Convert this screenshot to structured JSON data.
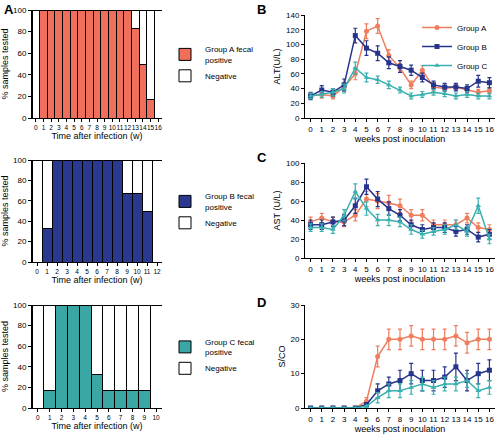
{
  "chart_data": [
    {
      "type": "bar",
      "title": "A",
      "stacked": true,
      "grid": false,
      "legend": "right",
      "x_label": "Time after infection (w)",
      "y_label": "% samples tested",
      "categories": [
        "0",
        "1",
        "2",
        "3",
        "4",
        "5",
        "6",
        "7",
        "8",
        "9",
        "10",
        "11",
        "12",
        "13",
        "14",
        "15",
        "16"
      ],
      "ylim": [
        0,
        100
      ],
      "yticks": [
        0,
        20,
        40,
        60,
        80,
        100
      ],
      "series": [
        {
          "name": "Group A fecal positive",
          "color": "#ef6f5c",
          "values": [
            0,
            100,
            100,
            100,
            100,
            100,
            100,
            100,
            100,
            100,
            100,
            100,
            100,
            83,
            50,
            17,
            0
          ]
        },
        {
          "name": "Negative",
          "color": "#ffffff",
          "values": [
            100,
            0,
            0,
            0,
            0,
            0,
            0,
            0,
            0,
            0,
            0,
            0,
            0,
            17,
            50,
            83,
            100
          ]
        }
      ]
    },
    {
      "type": "bar",
      "stacked": true,
      "grid": false,
      "legend": "right",
      "x_label": "Time after infection (w)",
      "y_label": "% samples tested",
      "categories": [
        "0",
        "1",
        "2",
        "3",
        "4",
        "5",
        "6",
        "7",
        "8",
        "9",
        "10",
        "11",
        "12"
      ],
      "ylim": [
        0,
        100
      ],
      "yticks": [
        0,
        20,
        40,
        60,
        80,
        100
      ],
      "series": [
        {
          "name": "Group B fecal positive",
          "color": "#2a3990",
          "values": [
            0,
            33,
            100,
            100,
            100,
            100,
            100,
            100,
            100,
            67,
            67,
            50,
            0
          ]
        },
        {
          "name": "Negative",
          "color": "#ffffff",
          "values": [
            100,
            67,
            0,
            0,
            0,
            0,
            0,
            0,
            0,
            33,
            33,
            50,
            100
          ]
        }
      ]
    },
    {
      "type": "bar",
      "stacked": true,
      "grid": false,
      "legend": "right",
      "x_label": "Time after infection (w)",
      "y_label": "% samples tested",
      "categories": [
        "0",
        "1",
        "2",
        "3",
        "4",
        "5",
        "6",
        "7",
        "8",
        "9",
        "10"
      ],
      "ylim": [
        0,
        100
      ],
      "yticks": [
        0,
        20,
        40,
        60,
        80,
        100
      ],
      "series": [
        {
          "name": "Group C fecal positive",
          "color": "#3aa7a5",
          "values": [
            0,
            17,
            100,
            100,
            100,
            33,
            17,
            17,
            17,
            17,
            0
          ]
        },
        {
          "name": "Negative",
          "color": "#ffffff",
          "values": [
            100,
            83,
            0,
            0,
            0,
            67,
            83,
            83,
            83,
            83,
            100
          ]
        }
      ]
    },
    {
      "type": "line",
      "title": "B",
      "grid": false,
      "legend": "upper right",
      "x_label": "weeks post inoculation",
      "y_label": "ALT(U/L)",
      "x": [
        0,
        1,
        2,
        3,
        4,
        5,
        6,
        7,
        8,
        9,
        10,
        11,
        12,
        13,
        14,
        15,
        16
      ],
      "xlim": [
        -0.5,
        16.5
      ],
      "xticks": [
        0,
        1,
        2,
        3,
        4,
        5,
        6,
        7,
        8,
        9,
        10,
        11,
        12,
        13,
        14,
        15,
        16
      ],
      "ylim": [
        0,
        140
      ],
      "yticks": [
        0,
        20,
        40,
        60,
        80,
        100,
        120,
        140
      ],
      "series": [
        {
          "name": "Group A",
          "color": "#ee7e5e",
          "marker": "circle",
          "values": [
            30,
            32,
            30,
            42,
            60,
            118,
            125,
            85,
            68,
            45,
            65,
            42,
            40,
            42,
            38,
            35,
            37
          ],
          "errors": [
            4,
            5,
            4,
            6,
            8,
            10,
            10,
            8,
            6,
            5,
            6,
            5,
            4,
            4,
            4,
            4,
            4
          ]
        },
        {
          "name": "Group B",
          "color": "#27348b",
          "marker": "square",
          "values": [
            30,
            38,
            35,
            45,
            112,
            95,
            88,
            75,
            70,
            65,
            55,
            45,
            42,
            42,
            40,
            50,
            48
          ],
          "errors": [
            5,
            6,
            5,
            8,
            10,
            10,
            10,
            8,
            8,
            7,
            6,
            5,
            5,
            5,
            5,
            8,
            7
          ]
        },
        {
          "name": "Group C",
          "color": "#3ab0b0",
          "marker": "triangle-up",
          "values": [
            30,
            32,
            35,
            40,
            68,
            55,
            52,
            45,
            38,
            30,
            32,
            35,
            33,
            30,
            32,
            30,
            30
          ],
          "errors": [
            4,
            4,
            5,
            6,
            8,
            6,
            5,
            5,
            4,
            4,
            4,
            4,
            4,
            4,
            4,
            4,
            4
          ]
        }
      ]
    },
    {
      "type": "line",
      "title": "C",
      "grid": false,
      "x_label": "weeks post inoculation",
      "y_label": "AST (U/L)",
      "x": [
        0,
        1,
        2,
        3,
        4,
        5,
        6,
        7,
        8,
        9,
        10,
        11,
        12,
        13,
        14,
        15,
        16
      ],
      "xlim": [
        -0.5,
        16.5
      ],
      "xticks": [
        0,
        1,
        2,
        3,
        4,
        5,
        6,
        7,
        8,
        9,
        10,
        11,
        12,
        13,
        14,
        15,
        16
      ],
      "ylim": [
        0,
        100
      ],
      "yticks": [
        0,
        20,
        40,
        60,
        80,
        100
      ],
      "series": [
        {
          "color": "#ee7e5e",
          "marker": "circle",
          "values": [
            38,
            42,
            38,
            38,
            45,
            62,
            60,
            58,
            55,
            45,
            45,
            35,
            35,
            35,
            42,
            32,
            30
          ],
          "errors": [
            5,
            5,
            5,
            5,
            6,
            8,
            8,
            8,
            7,
            6,
            6,
            5,
            5,
            5,
            5,
            5,
            5
          ]
        },
        {
          "color": "#27348b",
          "marker": "square",
          "values": [
            35,
            35,
            38,
            40,
            55,
            75,
            62,
            52,
            45,
            35,
            30,
            32,
            32,
            28,
            30,
            22,
            25
          ],
          "errors": [
            5,
            5,
            5,
            6,
            8,
            8,
            8,
            7,
            6,
            5,
            5,
            5,
            5,
            5,
            5,
            5,
            5
          ]
        },
        {
          "color": "#3ab0b0",
          "marker": "triangle-up",
          "values": [
            32,
            32,
            30,
            45,
            70,
            52,
            40,
            40,
            38,
            30,
            25,
            28,
            30,
            35,
            28,
            55,
            20
          ],
          "errors": [
            4,
            4,
            4,
            6,
            8,
            7,
            6,
            6,
            5,
            5,
            4,
            4,
            5,
            5,
            5,
            8,
            5
          ]
        }
      ]
    },
    {
      "type": "line",
      "title": "D",
      "grid": false,
      "x_label": "weeks post inoculation",
      "y_label": "S/CO",
      "x": [
        0,
        1,
        2,
        3,
        4,
        5,
        6,
        7,
        8,
        9,
        10,
        11,
        12,
        13,
        14,
        15,
        16
      ],
      "xlim": [
        -0.5,
        16.5
      ],
      "xticks": [
        0,
        1,
        2,
        3,
        4,
        5,
        6,
        7,
        8,
        9,
        10,
        11,
        12,
        13,
        14,
        15,
        16
      ],
      "ylim": [
        0,
        30
      ],
      "yticks": [
        0,
        10,
        20,
        30
      ],
      "series": [
        {
          "color": "#ee7e5e",
          "marker": "circle",
          "values": [
            0,
            0,
            0,
            0,
            0,
            2,
            15,
            20,
            20,
            21,
            20,
            20,
            20,
            21,
            19,
            20,
            20
          ],
          "errors": [
            0.2,
            0.2,
            0.2,
            0.2,
            0.3,
            1,
            3,
            3,
            3,
            3,
            3,
            3,
            3,
            3,
            3,
            3,
            3
          ]
        },
        {
          "color": "#27348b",
          "marker": "square",
          "values": [
            0,
            0,
            0,
            0,
            0,
            1,
            5,
            7,
            8,
            10,
            8,
            8,
            9,
            12,
            8,
            10,
            11
          ],
          "errors": [
            0.2,
            0.2,
            0.2,
            0.2,
            0.3,
            0.5,
            2,
            2,
            3,
            3,
            3,
            3,
            3,
            4,
            3,
            3,
            3
          ]
        },
        {
          "color": "#3ab0b0",
          "marker": "triangle-up",
          "values": [
            0,
            0,
            0,
            0,
            0,
            0.5,
            3,
            5,
            5,
            6,
            7,
            6,
            7,
            7,
            8,
            5,
            6
          ],
          "errors": [
            0.2,
            0.2,
            0.2,
            0.2,
            0.2,
            0.3,
            1.5,
            2,
            2,
            2,
            2,
            2,
            2,
            2,
            2,
            2,
            2
          ]
        }
      ]
    }
  ]
}
